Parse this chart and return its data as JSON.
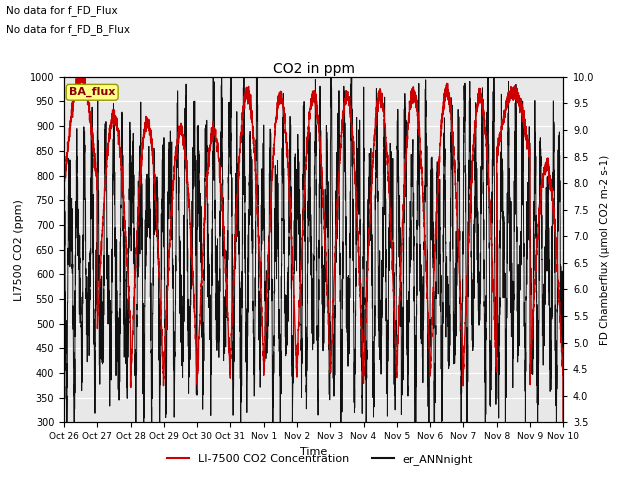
{
  "title": "CO2 in ppm",
  "xlabel": "Time",
  "ylabel_left": "LI7500 CO2 (ppm)",
  "ylabel_right": "FD Chamberflux (μmol CO2 m-2 s-1)",
  "ylim_left": [
    300,
    1000
  ],
  "ylim_right": [
    3.5,
    10.0
  ],
  "yticks_left": [
    300,
    350,
    400,
    450,
    500,
    550,
    600,
    650,
    700,
    750,
    800,
    850,
    900,
    950,
    1000
  ],
  "yticks_right": [
    3.5,
    4.0,
    4.5,
    5.0,
    5.5,
    6.0,
    6.5,
    7.0,
    7.5,
    8.0,
    8.5,
    9.0,
    9.5,
    10.0
  ],
  "xtick_labels": [
    "Oct 26",
    "Oct 27",
    "Oct 28",
    "Oct 29",
    "Oct 30",
    "Oct 31",
    "Nov 1",
    "Nov 2",
    "Nov 3",
    "Nov 4",
    "Nov 5",
    "Nov 6",
    "Nov 7",
    "Nov 8",
    "Nov 9",
    "Nov 10"
  ],
  "annotation1": "No data for f_FD_Flux",
  "annotation2": "No data for f_FD_B_Flux",
  "ba_flux_label": "BA_flux",
  "legend_red_label": "LI-7500 CO2 Concentration",
  "legend_black_label": "er_ANNnight",
  "plot_bg_color": "#e8e8e8",
  "red_color": "#cc0000",
  "black_color": "#111111",
  "n_days": 15,
  "seed": 42
}
